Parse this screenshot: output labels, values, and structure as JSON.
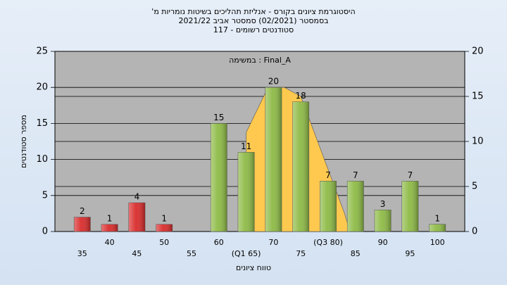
{
  "chart_data": {
    "type": "bar",
    "title": "היסטוגרמת ציונים בקורס - אנליזת תהליכים בשיטות נומריות מ'",
    "subtitle": "בסמסטר  (02/2021)  סמסטר אביב 2021/22",
    "subtitle2": "סטודנטים רשומים - 117",
    "annotation": "במשימה : Final_A",
    "x_label": "טווח ציונים",
    "y_label": "מספר סטודנטים",
    "categories": [
      "35",
      "40",
      "45",
      "50",
      "55",
      "60",
      "(Q1 65)",
      "70",
      "75",
      "(Q3 80)",
      "85",
      "90",
      "95",
      "100"
    ],
    "values": [
      2,
      1,
      4,
      1,
      0,
      15,
      11,
      20,
      18,
      7,
      7,
      3,
      7,
      1
    ],
    "colors": [
      "#d92b2b",
      "#d92b2b",
      "#d92b2b",
      "#d92b2b",
      "#d92b2b",
      "#8dba45",
      "#8dba45",
      "#8dba45",
      "#8dba45",
      "#8dba45",
      "#8dba45",
      "#8dba45",
      "#8dba45",
      "#8dba45"
    ],
    "ylim": [
      0,
      25
    ],
    "yticks": [
      0,
      5,
      10,
      15,
      20,
      25
    ],
    "y2lim": [
      0,
      20
    ],
    "y2ticks": [
      0,
      5,
      10,
      15,
      20
    ],
    "grid": true,
    "area": {
      "axis": "y2",
      "color": "#ffc94f",
      "x": [
        65,
        65,
        69,
        72,
        75,
        83,
        84
      ],
      "values": [
        0,
        11,
        16,
        16,
        15,
        2,
        0
      ]
    }
  }
}
